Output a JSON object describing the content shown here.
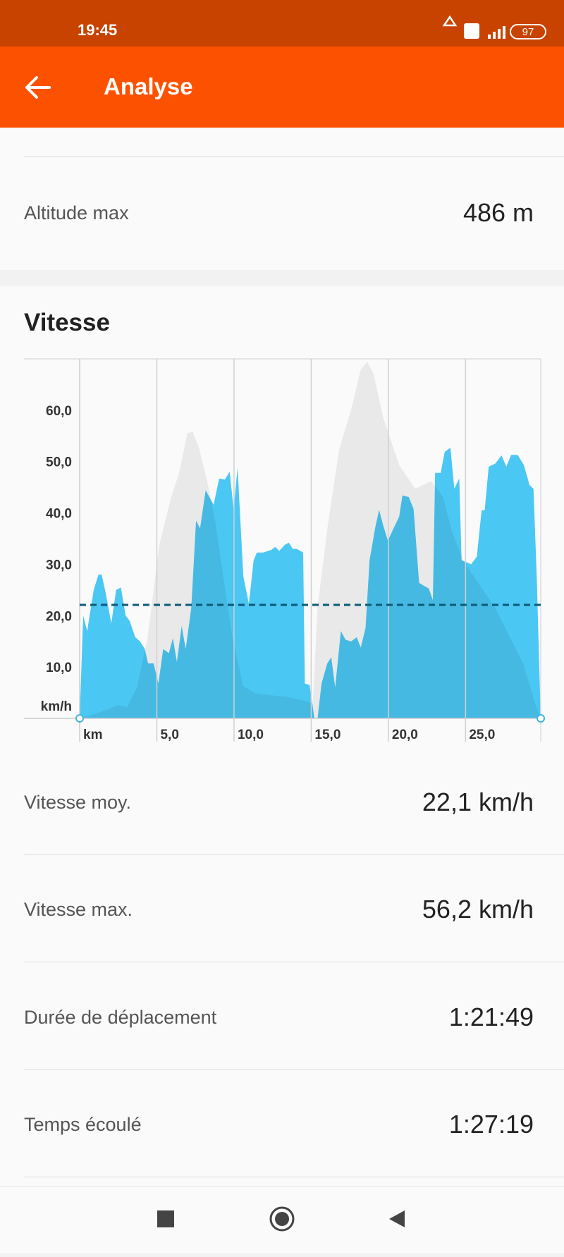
{
  "status_bar": {
    "time": "19:45",
    "battery": "97"
  },
  "app_bar": {
    "title": "Analyse"
  },
  "altitude": {
    "label": "Altitude max",
    "value": "486 m"
  },
  "speed_section": {
    "title": "Vitesse"
  },
  "chart_data": {
    "type": "area",
    "y_label": "km/h",
    "x_label": "km",
    "xlim": [
      0,
      29.87
    ],
    "ylim": [
      0,
      70
    ],
    "xticks": [
      {
        "value": 5,
        "label": "5,0"
      },
      {
        "value": 10,
        "label": "10,0"
      },
      {
        "value": 15,
        "label": "15,0"
      },
      {
        "value": 20,
        "label": "20,0"
      },
      {
        "value": 25,
        "label": "25,0"
      }
    ],
    "yticks": [
      {
        "value": 10,
        "label": "10,0"
      },
      {
        "value": 20,
        "label": "20,0"
      },
      {
        "value": 30,
        "label": "30,0"
      },
      {
        "value": 40,
        "label": "40,0"
      },
      {
        "value": 50,
        "label": "50,0"
      },
      {
        "value": 60,
        "label": "60,0"
      }
    ],
    "grid": "x",
    "series": [
      {
        "color": "#e9e9e9",
        "x": [
          0,
          1.53,
          2.46,
          3.08,
          3.7,
          4.38,
          5.16,
          5.93,
          6.45,
          6.97,
          7.33,
          7.75,
          8.26,
          8.78,
          9.3,
          9.92,
          10.6,
          11.37,
          12.41,
          13.44,
          14.64,
          15.1,
          15.41,
          16.04,
          16.81,
          17.59,
          18.21,
          18.63,
          19.04,
          19.66,
          20.7,
          21.74,
          22.77,
          23.55,
          24.06,
          24.84,
          25.88,
          26.92,
          27.95,
          28.73,
          29.51,
          29.87
        ],
        "values": [
          0,
          1.4,
          2.6,
          2.2,
          6.0,
          15.3,
          33.8,
          43.1,
          47.8,
          55.5,
          55.8,
          52.4,
          46.2,
          38.5,
          27.7,
          15.3,
          6.3,
          4.9,
          4.5,
          4.2,
          3.4,
          2.9,
          21.5,
          36.9,
          52.4,
          60.1,
          67.9,
          69.4,
          67.1,
          58.6,
          49.3,
          44.7,
          46.2,
          43.1,
          36.9,
          30.8,
          26.1,
          21.5,
          15.3,
          10.7,
          2.9,
          0
        ]
      },
      {
        "color": "#4ccbf8",
        "x": [
          0,
          0.23,
          0.49,
          0.91,
          1.22,
          1.42,
          1.68,
          2.05,
          2.36,
          2.67,
          2.98,
          3.24,
          3.6,
          3.91,
          4.22,
          4.43,
          4.79,
          5.1,
          5.41,
          5.78,
          6.04,
          6.3,
          6.61,
          6.87,
          7.23,
          7.54,
          7.8,
          8.16,
          8.68,
          9.04,
          9.4,
          9.72,
          9.97,
          10.23,
          10.6,
          10.96,
          11.27,
          11.48,
          11.89,
          12.41,
          12.67,
          12.93,
          13.29,
          13.55,
          13.81,
          14.07,
          14.48,
          14.59,
          14.9,
          15.21,
          15.41,
          15.67,
          16.04,
          16.3,
          16.55,
          16.92,
          17.23,
          17.59,
          17.95,
          18.21,
          18.52,
          18.78,
          19.15,
          19.4,
          19.66,
          19.97,
          20.34,
          20.7,
          20.91,
          21.32,
          21.63,
          21.99,
          22.31,
          22.62,
          22.88,
          23.03,
          23.39,
          23.65,
          24.02,
          24.27,
          24.59,
          24.74,
          25.36,
          25.73,
          26.04,
          26.24,
          26.5,
          26.92,
          27.33,
          27.64,
          27.95,
          28.37,
          28.78,
          29.15,
          29.4,
          29.61,
          29.87
        ],
        "values": [
          0,
          20,
          17,
          25,
          28,
          28,
          24.5,
          18.5,
          25,
          25.5,
          20,
          19,
          15.8,
          15,
          13.5,
          10.7,
          10.7,
          6.8,
          13.5,
          12.7,
          15.6,
          11,
          18,
          13.5,
          21.5,
          38.5,
          37,
          44.4,
          41.6,
          46.7,
          46.5,
          48,
          40.8,
          48.8,
          27.7,
          22.3,
          30.8,
          32.3,
          32.3,
          32.8,
          33.4,
          32.6,
          33.8,
          34.2,
          33,
          33,
          32.3,
          6.8,
          6.5,
          0,
          0,
          6.8,
          10.7,
          11.9,
          6,
          17,
          15.3,
          15,
          15.8,
          13.8,
          17.6,
          30.8,
          37.2,
          40.6,
          37.6,
          34.6,
          37,
          39.3,
          43.4,
          43.1,
          40.8,
          26.4,
          25.8,
          25.3,
          23,
          47.8,
          47.8,
          51.9,
          52.7,
          44.7,
          46.7,
          30.8,
          30,
          31.5,
          40.5,
          40.5,
          49,
          49.6,
          51.2,
          49,
          51.3,
          51.3,
          49.3,
          45.4,
          44.7,
          27.7,
          0
        ]
      }
    ],
    "mean_line": {
      "value": 22.1,
      "color": "#0d5a78"
    }
  },
  "stats": [
    {
      "label": "Vitesse moy.",
      "value": "22,1 km/h"
    },
    {
      "label": "Vitesse max.",
      "value": "56,2 km/h"
    },
    {
      "label": "Durée de déplacement",
      "value": "1:21:49"
    },
    {
      "label": "Temps écoulé",
      "value": "1:27:19"
    }
  ]
}
